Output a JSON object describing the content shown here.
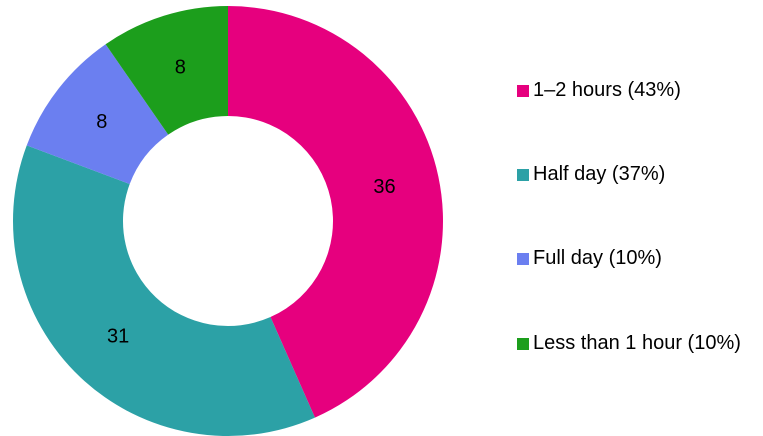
{
  "chart_data": {
    "type": "donut",
    "categories": [
      "1–2 hours (43%)",
      "Half day (37%)",
      "Full day (10%)",
      "Less than 1 hour (10%)"
    ],
    "values": [
      36,
      31,
      8,
      8
    ],
    "colors": [
      "#e6007e",
      "#2ca1a6",
      "#6b7ff0",
      "#1c9e1c"
    ],
    "legend": "right"
  }
}
